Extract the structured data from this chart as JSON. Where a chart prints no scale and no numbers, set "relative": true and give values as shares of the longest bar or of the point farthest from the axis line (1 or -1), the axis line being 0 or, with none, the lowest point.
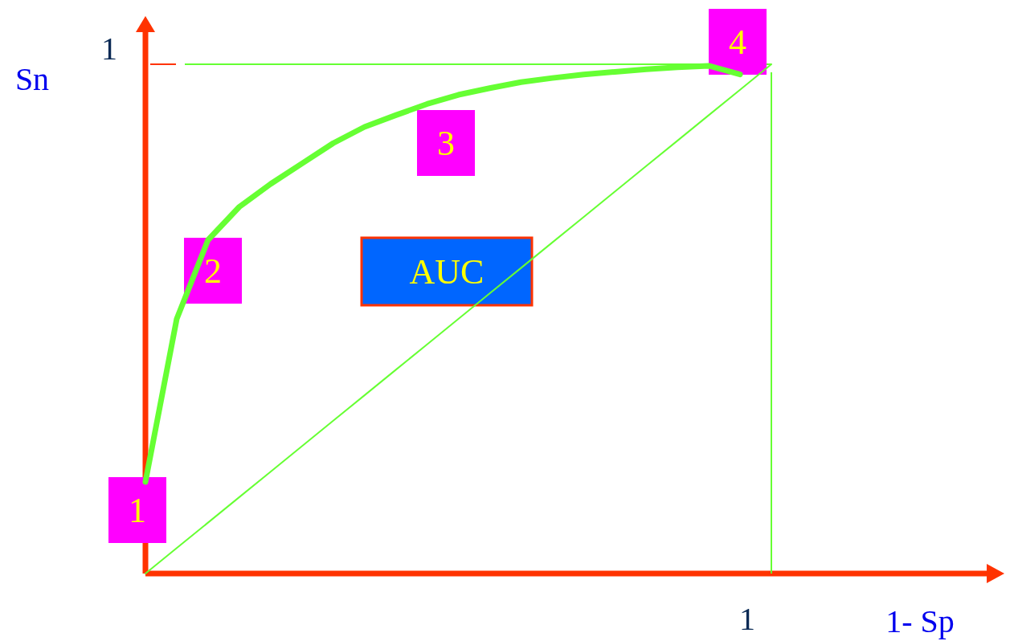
{
  "chart_data": {
    "type": "line",
    "xlabel": "1- Sp",
    "ylabel": "Sn",
    "relative": true,
    "categories": [
      null,
      null,
      null,
      null,
      null,
      null,
      null,
      null,
      null,
      null,
      null,
      null,
      null,
      null,
      null,
      null,
      null,
      null,
      null,
      null,
      null,
      null,
      null,
      null,
      null,
      null,
      null,
      null
    ],
    "series": [
      {
        "color": "#66ff33",
        "values": [
          0.18,
          0.5,
          0.655,
          0.72,
          0.765,
          0.805,
          0.845,
          0.877,
          0.9,
          0.922,
          0.94,
          0.953,
          0.965,
          0.973,
          0.98,
          0.985,
          0.99,
          0.994,
          0.997,
          0.98,
          null,
          null,
          null,
          null,
          null,
          null,
          null,
          null
        ]
      },
      {
        "color": "#66ff33",
        "values": [
          0,
          0.05,
          0.1,
          0.15,
          0.2,
          0.25,
          0.3,
          0.35,
          0.4,
          0.45,
          0.5,
          0.55,
          0.6,
          0.65,
          0.7,
          0.75,
          0.8,
          0.85,
          0.9,
          0.95,
          1,
          null,
          null,
          null,
          null,
          null,
          null,
          null
        ]
      }
    ],
    "ref_lines": [
      {
        "axis": "y",
        "value": 1,
        "color": "#66ff33"
      }
    ],
    "annotations": [
      "1",
      "1",
      "1",
      "2",
      "3",
      "4",
      "AUC"
    ],
    "legend": false
  }
}
